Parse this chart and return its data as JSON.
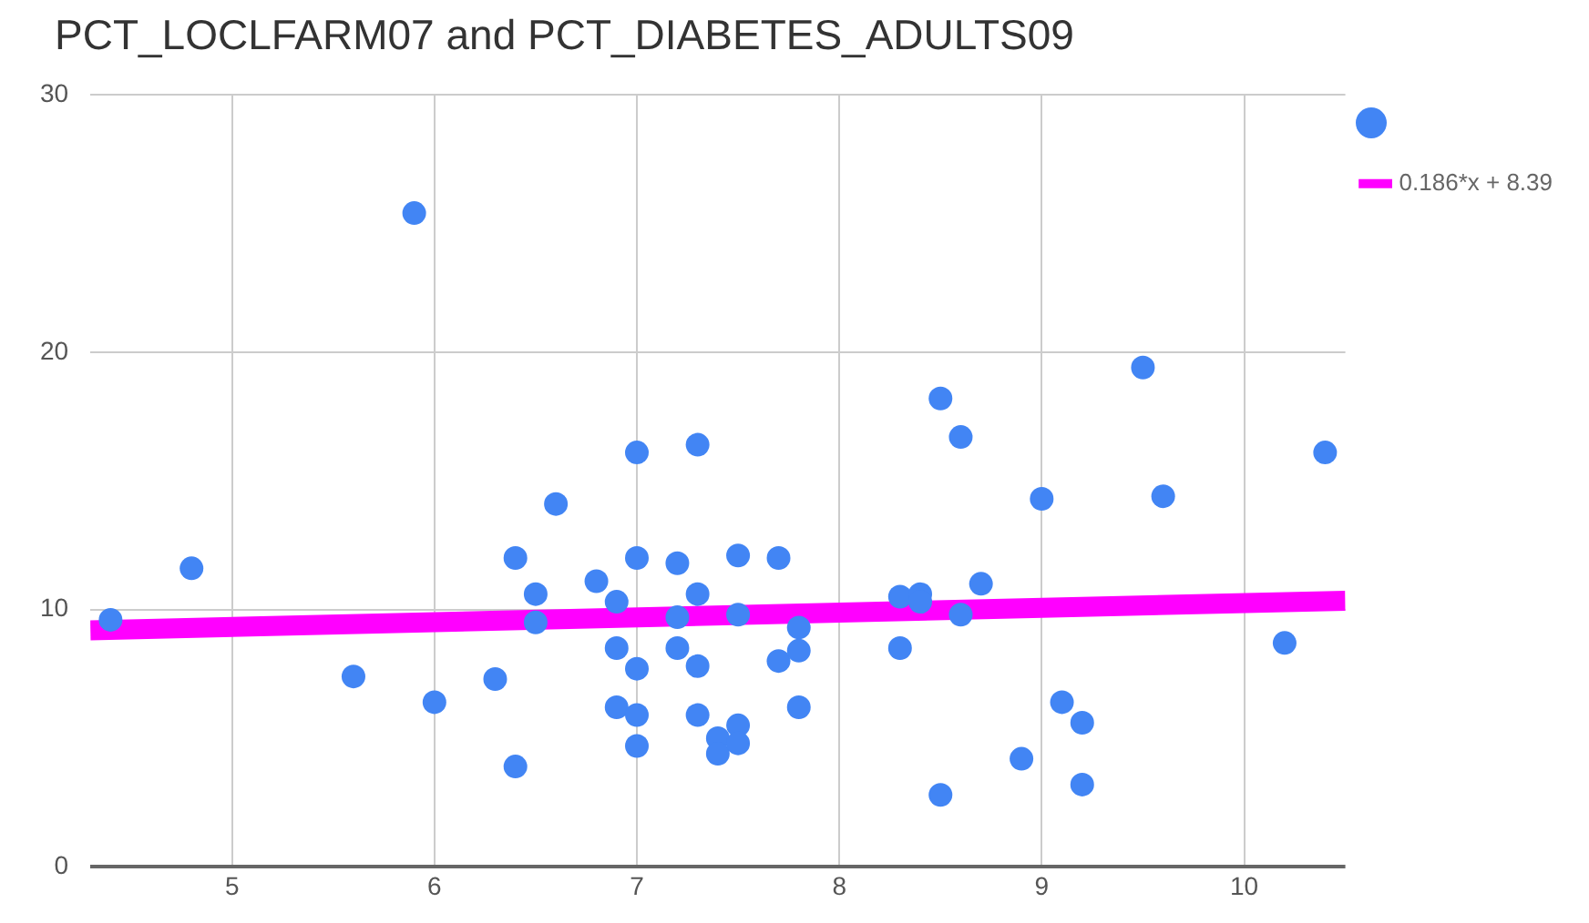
{
  "chart_data": {
    "type": "scatter",
    "title": "PCT_LOCLFARM07 and PCT_DIABETES_ADULTS09",
    "xlim": [
      4.3,
      10.5
    ],
    "xticks": [
      5,
      6,
      7,
      8,
      9,
      10
    ],
    "ylim": [
      0,
      30
    ],
    "yticks": [
      0,
      10,
      20,
      30
    ],
    "grid": true,
    "legend": "right",
    "marker": "circle",
    "series": [
      {
        "color": "#4285f4",
        "x": [
          4.4,
          4.8,
          5.6,
          5.9,
          6.0,
          6.3,
          6.4,
          6.4,
          6.5,
          6.5,
          6.6,
          6.8,
          6.9,
          6.9,
          6.9,
          7.0,
          7.0,
          7.0,
          7.0,
          7.0,
          7.2,
          7.2,
          7.2,
          7.3,
          7.3,
          7.3,
          7.3,
          7.4,
          7.4,
          7.5,
          7.5,
          7.5,
          7.5,
          7.7,
          7.7,
          7.8,
          7.8,
          7.8,
          8.3,
          8.3,
          8.4,
          8.4,
          8.5,
          8.5,
          8.6,
          8.6,
          8.7,
          8.9,
          9.0,
          9.1,
          9.2,
          9.2,
          9.5,
          9.6,
          10.2,
          10.4
        ],
        "values": [
          9.6,
          11.6,
          7.4,
          25.4,
          6.4,
          7.3,
          12.0,
          3.9,
          10.6,
          9.5,
          14.1,
          11.1,
          10.3,
          8.5,
          6.2,
          16.1,
          12.0,
          7.7,
          5.9,
          4.7,
          11.8,
          9.7,
          8.5,
          16.4,
          10.6,
          7.8,
          5.9,
          5.0,
          4.4,
          12.1,
          9.8,
          5.5,
          4.8,
          12.0,
          8.0,
          9.3,
          8.4,
          6.2,
          10.5,
          8.5,
          10.6,
          10.3,
          18.2,
          2.8,
          16.7,
          9.8,
          11.0,
          4.2,
          14.3,
          6.4,
          5.6,
          3.2,
          19.4,
          14.4,
          8.7,
          16.1
        ]
      },
      {
        "type": "line",
        "name": "0.186*x + 8.39",
        "color": "#ff00ff",
        "marker": "none",
        "line_style": "solid",
        "x": [
          4.3,
          10.5
        ],
        "values": [
          9.19,
          10.34
        ]
      }
    ]
  }
}
